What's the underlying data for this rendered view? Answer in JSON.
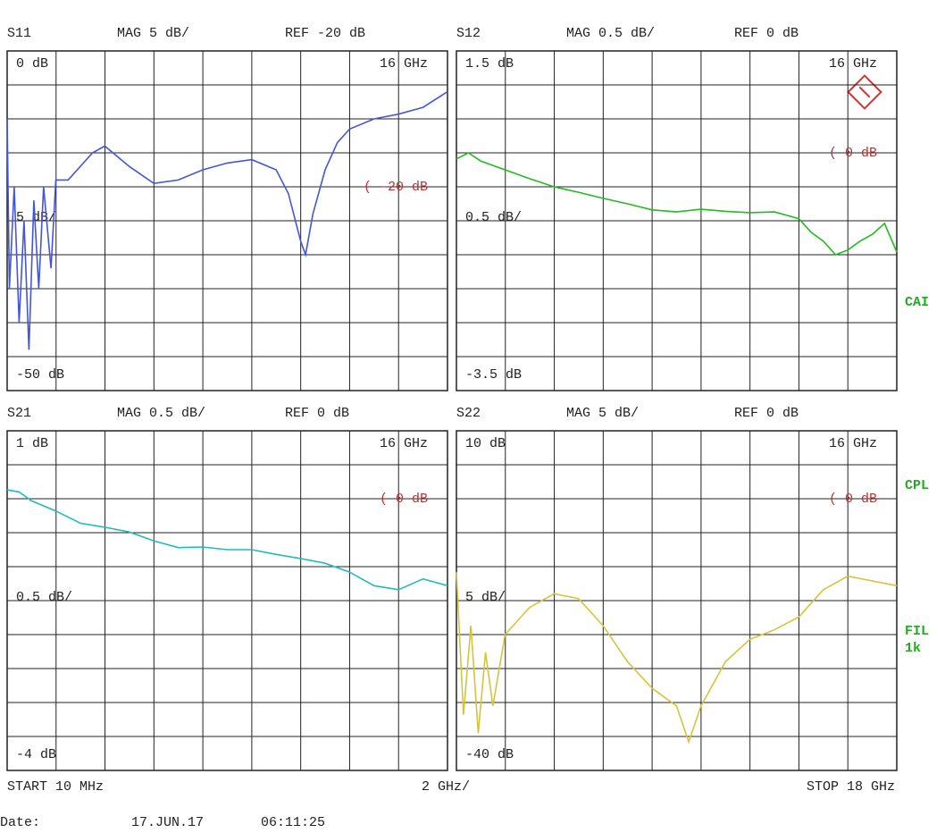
{
  "chart_data": [
    {
      "type": "line",
      "title": "S11",
      "format": "MAG 5 dB/",
      "reference": "REF -20 dB",
      "top_label": "0 dB",
      "bottom_label": "-50 dB",
      "scale_label": "5 dB/",
      "marker_label": "16 GHz",
      "ref_marker": "(  -20 dB",
      "ref_value": -20,
      "color": "#4455dd",
      "xlim": [
        0.01,
        18
      ],
      "ylim": [
        -50,
        0
      ],
      "x_divisions": 9,
      "y_divisions": 10,
      "grid": true,
      "x": [
        0.01,
        0.1,
        0.3,
        0.5,
        0.7,
        0.9,
        1.1,
        1.3,
        1.5,
        1.8,
        2,
        2.5,
        3.5,
        4,
        5,
        6,
        7,
        8,
        9,
        10,
        11,
        11.5,
        12,
        12.2,
        12.5,
        13,
        13.5,
        14,
        15,
        16,
        17,
        18
      ],
      "values": [
        -10,
        -35,
        -20,
        -40,
        -25,
        -44,
        -22,
        -35,
        -20,
        -32,
        -19,
        -19,
        -15,
        -14,
        -17,
        -19.5,
        -19,
        -17.5,
        -16.5,
        -16,
        -17.5,
        -21,
        -28,
        -30,
        -24,
        -17.5,
        -13.5,
        -11.5,
        -10,
        -9.3,
        -8.3,
        -6
      ]
    },
    {
      "type": "line",
      "title": "S12",
      "format": "MAG 0.5 dB/",
      "reference": "REF 0 dB",
      "top_label": "1.5 dB",
      "bottom_label": "-3.5 dB",
      "scale_label": "0.5 dB/",
      "marker_label": "16 GHz",
      "ref_marker": "(  0 dB",
      "ref_value": 0,
      "color": "#22bb22",
      "xlim": [
        0.01,
        18
      ],
      "ylim": [
        -3.5,
        1.5
      ],
      "x_divisions": 9,
      "y_divisions": 10,
      "grid": true,
      "x": [
        0.01,
        0.5,
        1,
        2,
        3,
        4,
        5,
        6,
        7,
        8,
        9,
        10,
        11,
        12,
        13,
        14,
        14.5,
        15,
        15.5,
        16,
        16.5,
        17,
        17.5,
        18
      ],
      "values": [
        -0.09,
        0,
        -0.12,
        -0.25,
        -0.38,
        -0.5,
        -0.58,
        -0.67,
        -0.75,
        -0.84,
        -0.87,
        -0.83,
        -0.86,
        -0.88,
        -0.87,
        -0.97,
        -1.17,
        -1.3,
        -1.5,
        -1.43,
        -1.3,
        -1.2,
        -1.04,
        -1.46
      ]
    },
    {
      "type": "line",
      "title": "S21",
      "format": "MAG 0.5 dB/",
      "reference": "REF 0 dB",
      "top_label": "1 dB",
      "bottom_label": "-4 dB",
      "scale_label": "0.5 dB/",
      "marker_label": "16 GHz",
      "ref_marker": "(  0 dB",
      "ref_value": 0,
      "color": "#22bbbb",
      "xlim": [
        0.01,
        18
      ],
      "ylim": [
        -4,
        1
      ],
      "x_divisions": 9,
      "y_divisions": 10,
      "grid": true,
      "x": [
        0.01,
        0.5,
        1,
        2,
        3,
        4,
        5,
        6,
        7,
        8,
        9,
        10,
        11,
        12,
        13,
        14,
        15,
        16,
        17,
        18
      ],
      "values": [
        0.13,
        0.1,
        -0.03,
        -0.18,
        -0.36,
        -0.42,
        -0.49,
        -0.62,
        -0.72,
        -0.71,
        -0.75,
        -0.75,
        -0.82,
        -0.88,
        -0.95,
        -1.08,
        -1.28,
        -1.34,
        -1.18,
        -1.28
      ]
    },
    {
      "type": "line",
      "title": "S22",
      "format": "MAG 5 dB/",
      "reference": "REF 0 dB",
      "top_label": "10 dB",
      "bottom_label": "-40 dB",
      "scale_label": "5 dB/",
      "marker_label": "16 GHz",
      "ref_marker": "(  0 dB",
      "ref_value": 0,
      "color": "#d4c43a",
      "xlim": [
        0.01,
        18
      ],
      "ylim": [
        -40,
        10
      ],
      "x_divisions": 9,
      "y_divisions": 10,
      "grid": true,
      "x": [
        0.01,
        0.3,
        0.6,
        0.9,
        1.2,
        1.5,
        2,
        3,
        4,
        5,
        6,
        7,
        8,
        9,
        9.5,
        10,
        11,
        12,
        13,
        14,
        15,
        16,
        17,
        18
      ],
      "values": [
        -10.8,
        -31.8,
        -18.7,
        -34.5,
        -22.6,
        -30.5,
        -20,
        -16,
        -14,
        -14.7,
        -18.7,
        -24,
        -27.9,
        -30.5,
        -35.8,
        -30.5,
        -24,
        -20.7,
        -19.3,
        -17.4,
        -13.4,
        -11.4,
        -12.1,
        -12.8
      ]
    }
  ],
  "side_labels": [
    "CAI",
    "CPL",
    "FIL",
    "1k"
  ],
  "footer": {
    "start": "START  10 MHz",
    "span": "2 GHz/",
    "stop": "STOP 18 GHz",
    "date_label": "Date:",
    "date": "17.JUN.17",
    "time": "06:11:25"
  }
}
